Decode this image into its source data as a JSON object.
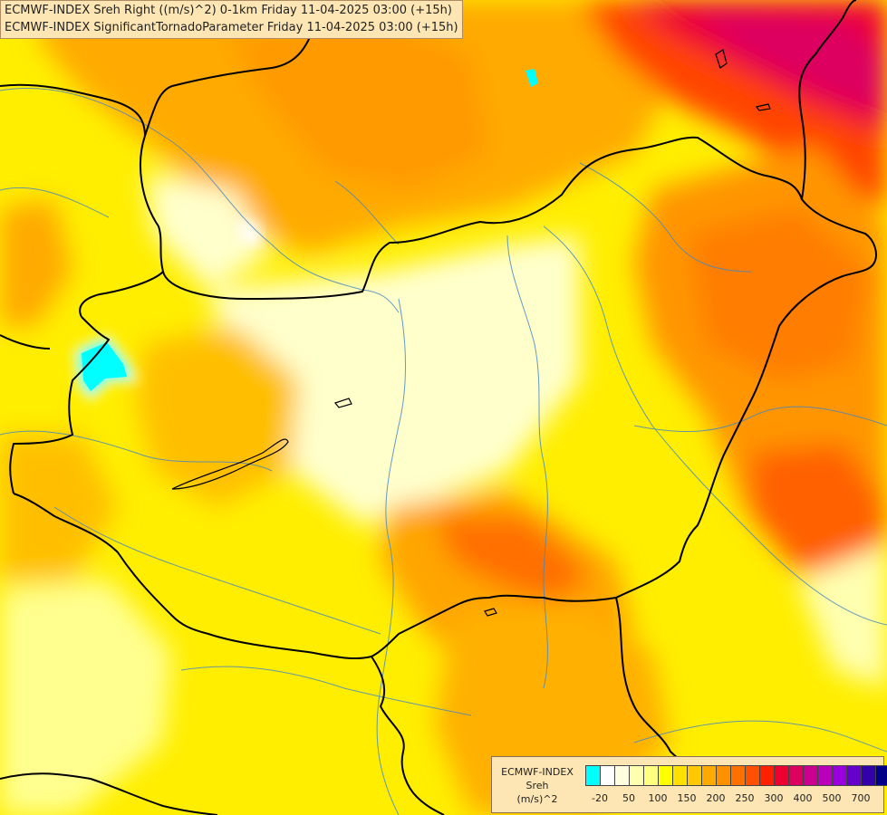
{
  "titles": {
    "line1": "ECMWF-INDEX Sreh Right ((m/s)^2) 0-1km Friday 11-04-2025 03:00 (+15h)",
    "line2": "ECMWF-INDEX SignificantTornadoParameter Friday 11-04-2025 03:00 (+15h)"
  },
  "legend": {
    "title_line1": "ECMWF-INDEX",
    "title_line2": "Sreh",
    "title_line3": "(m/s)^2",
    "colors": [
      "#00ffff",
      "#ffffff",
      "#ffffe0",
      "#ffffb0",
      "#ffff80",
      "#ffff00",
      "#ffe000",
      "#ffc800",
      "#ffaa00",
      "#ff9000",
      "#ff7000",
      "#ff5000",
      "#ff2000",
      "#ee0030",
      "#dd0060",
      "#cc0090",
      "#bb00bb",
      "#9900dd",
      "#6600cc",
      "#3300aa",
      "#000088"
    ],
    "ticks": [
      "-20",
      "50",
      "100",
      "150",
      "200",
      "250",
      "300",
      "400",
      "500",
      "700"
    ]
  }
}
